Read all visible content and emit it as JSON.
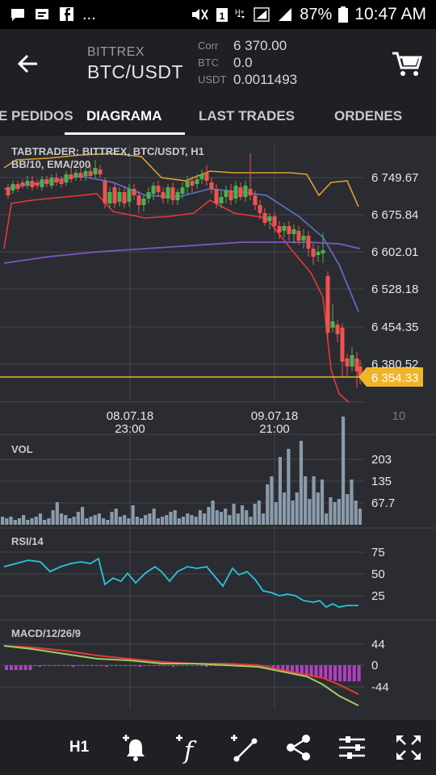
{
  "status_bar": {
    "battery": "87%",
    "time": "10:47 AM",
    "more": "..."
  },
  "header": {
    "exchange": "BITTREX",
    "pair": "BTC/USDT",
    "stats": [
      {
        "key": "Corr",
        "value": "6 370.00"
      },
      {
        "key": "BTC",
        "value": "0.0"
      },
      {
        "key": "USDT",
        "value": "0.0011493"
      }
    ]
  },
  "tabs": [
    {
      "label": "E PEDIDOS",
      "active": false
    },
    {
      "label": "DIAGRAMA",
      "active": true
    },
    {
      "label": "LAST TRADES",
      "active": false
    },
    {
      "label": "ORDENES",
      "active": false
    }
  ],
  "chart": {
    "title": "TABTRADER: BITTREX, BTC/USDT, H1",
    "indicators": "BB/10, EMA/200",
    "price_ticks": [
      "6 749.67",
      "6 675.84",
      "6 602.01",
      "6 528.18",
      "6 454.35",
      "6 380.52"
    ],
    "current_price": "6 354.33",
    "time_ticks": [
      {
        "date": "08.07.18",
        "time": "23:00"
      },
      {
        "date": "09.07.18",
        "time": "21:00"
      },
      {
        "date": "10",
        "time": ""
      }
    ],
    "vol": {
      "label": "VOL",
      "ticks": [
        "203",
        "135",
        "67.7"
      ]
    },
    "rsi": {
      "label": "RSI/14",
      "ticks": [
        "75",
        "50",
        "25"
      ]
    },
    "macd": {
      "label": "MACD/12/26/9",
      "ticks": [
        "44",
        "0",
        "-44"
      ]
    },
    "colors": {
      "up": "#4caf50",
      "down": "#ef5350",
      "bb_upper": "#e0a030",
      "bb_lower": "#e53935",
      "bb_mid": "#5c6bc0",
      "ema": "#7e57c2",
      "price_line": "#f0b429",
      "volume": "#8a9bab",
      "rsi": "#26c6da",
      "macd_signal": "#e53935",
      "macd_line": "#9ccc65",
      "macd_hist": "#b040c0"
    }
  },
  "toolbar": {
    "timeframe": "H1",
    "tools": [
      "add-alert-icon",
      "add-indicator-icon",
      "add-line-icon",
      "share-icon",
      "settings-sliders-icon",
      "fullscreen-icon"
    ]
  }
}
